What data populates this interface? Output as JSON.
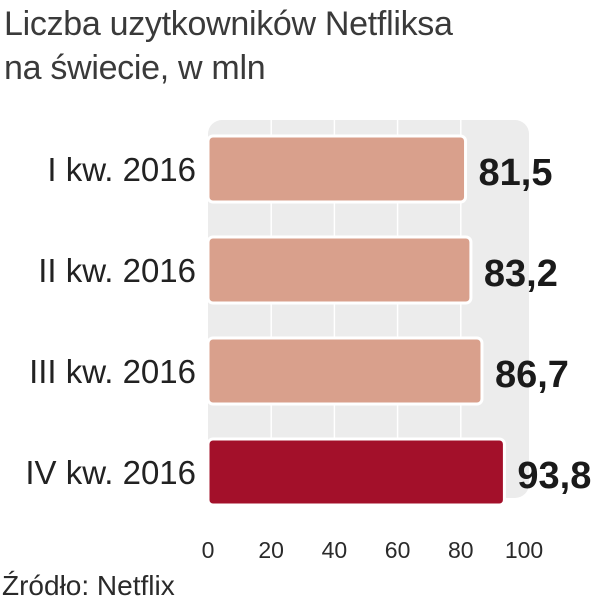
{
  "chart_data": {
    "type": "bar",
    "orientation": "horizontal",
    "title": "Liczba uzytkowników Netfliksa",
    "subtitle": "na świecie, w mln",
    "categories": [
      "I kw. 2016",
      "II kw. 2016",
      "III kw. 2016",
      "IV kw. 2016"
    ],
    "values": [
      81.5,
      83.2,
      86.7,
      93.8
    ],
    "value_labels": [
      "81,5",
      "83,2",
      "86,7",
      "93,8"
    ],
    "xlim": [
      0,
      100
    ],
    "ticks": [
      "0",
      "20",
      "40",
      "60",
      "80",
      "100"
    ],
    "grid": true,
    "colors": [
      "#d9a08c",
      "#d9a08c",
      "#d9a08c",
      "#a3102a"
    ],
    "plot_background": "#ececec",
    "gridline_color": "#ffffff"
  },
  "source": "Źródło: Netflix"
}
